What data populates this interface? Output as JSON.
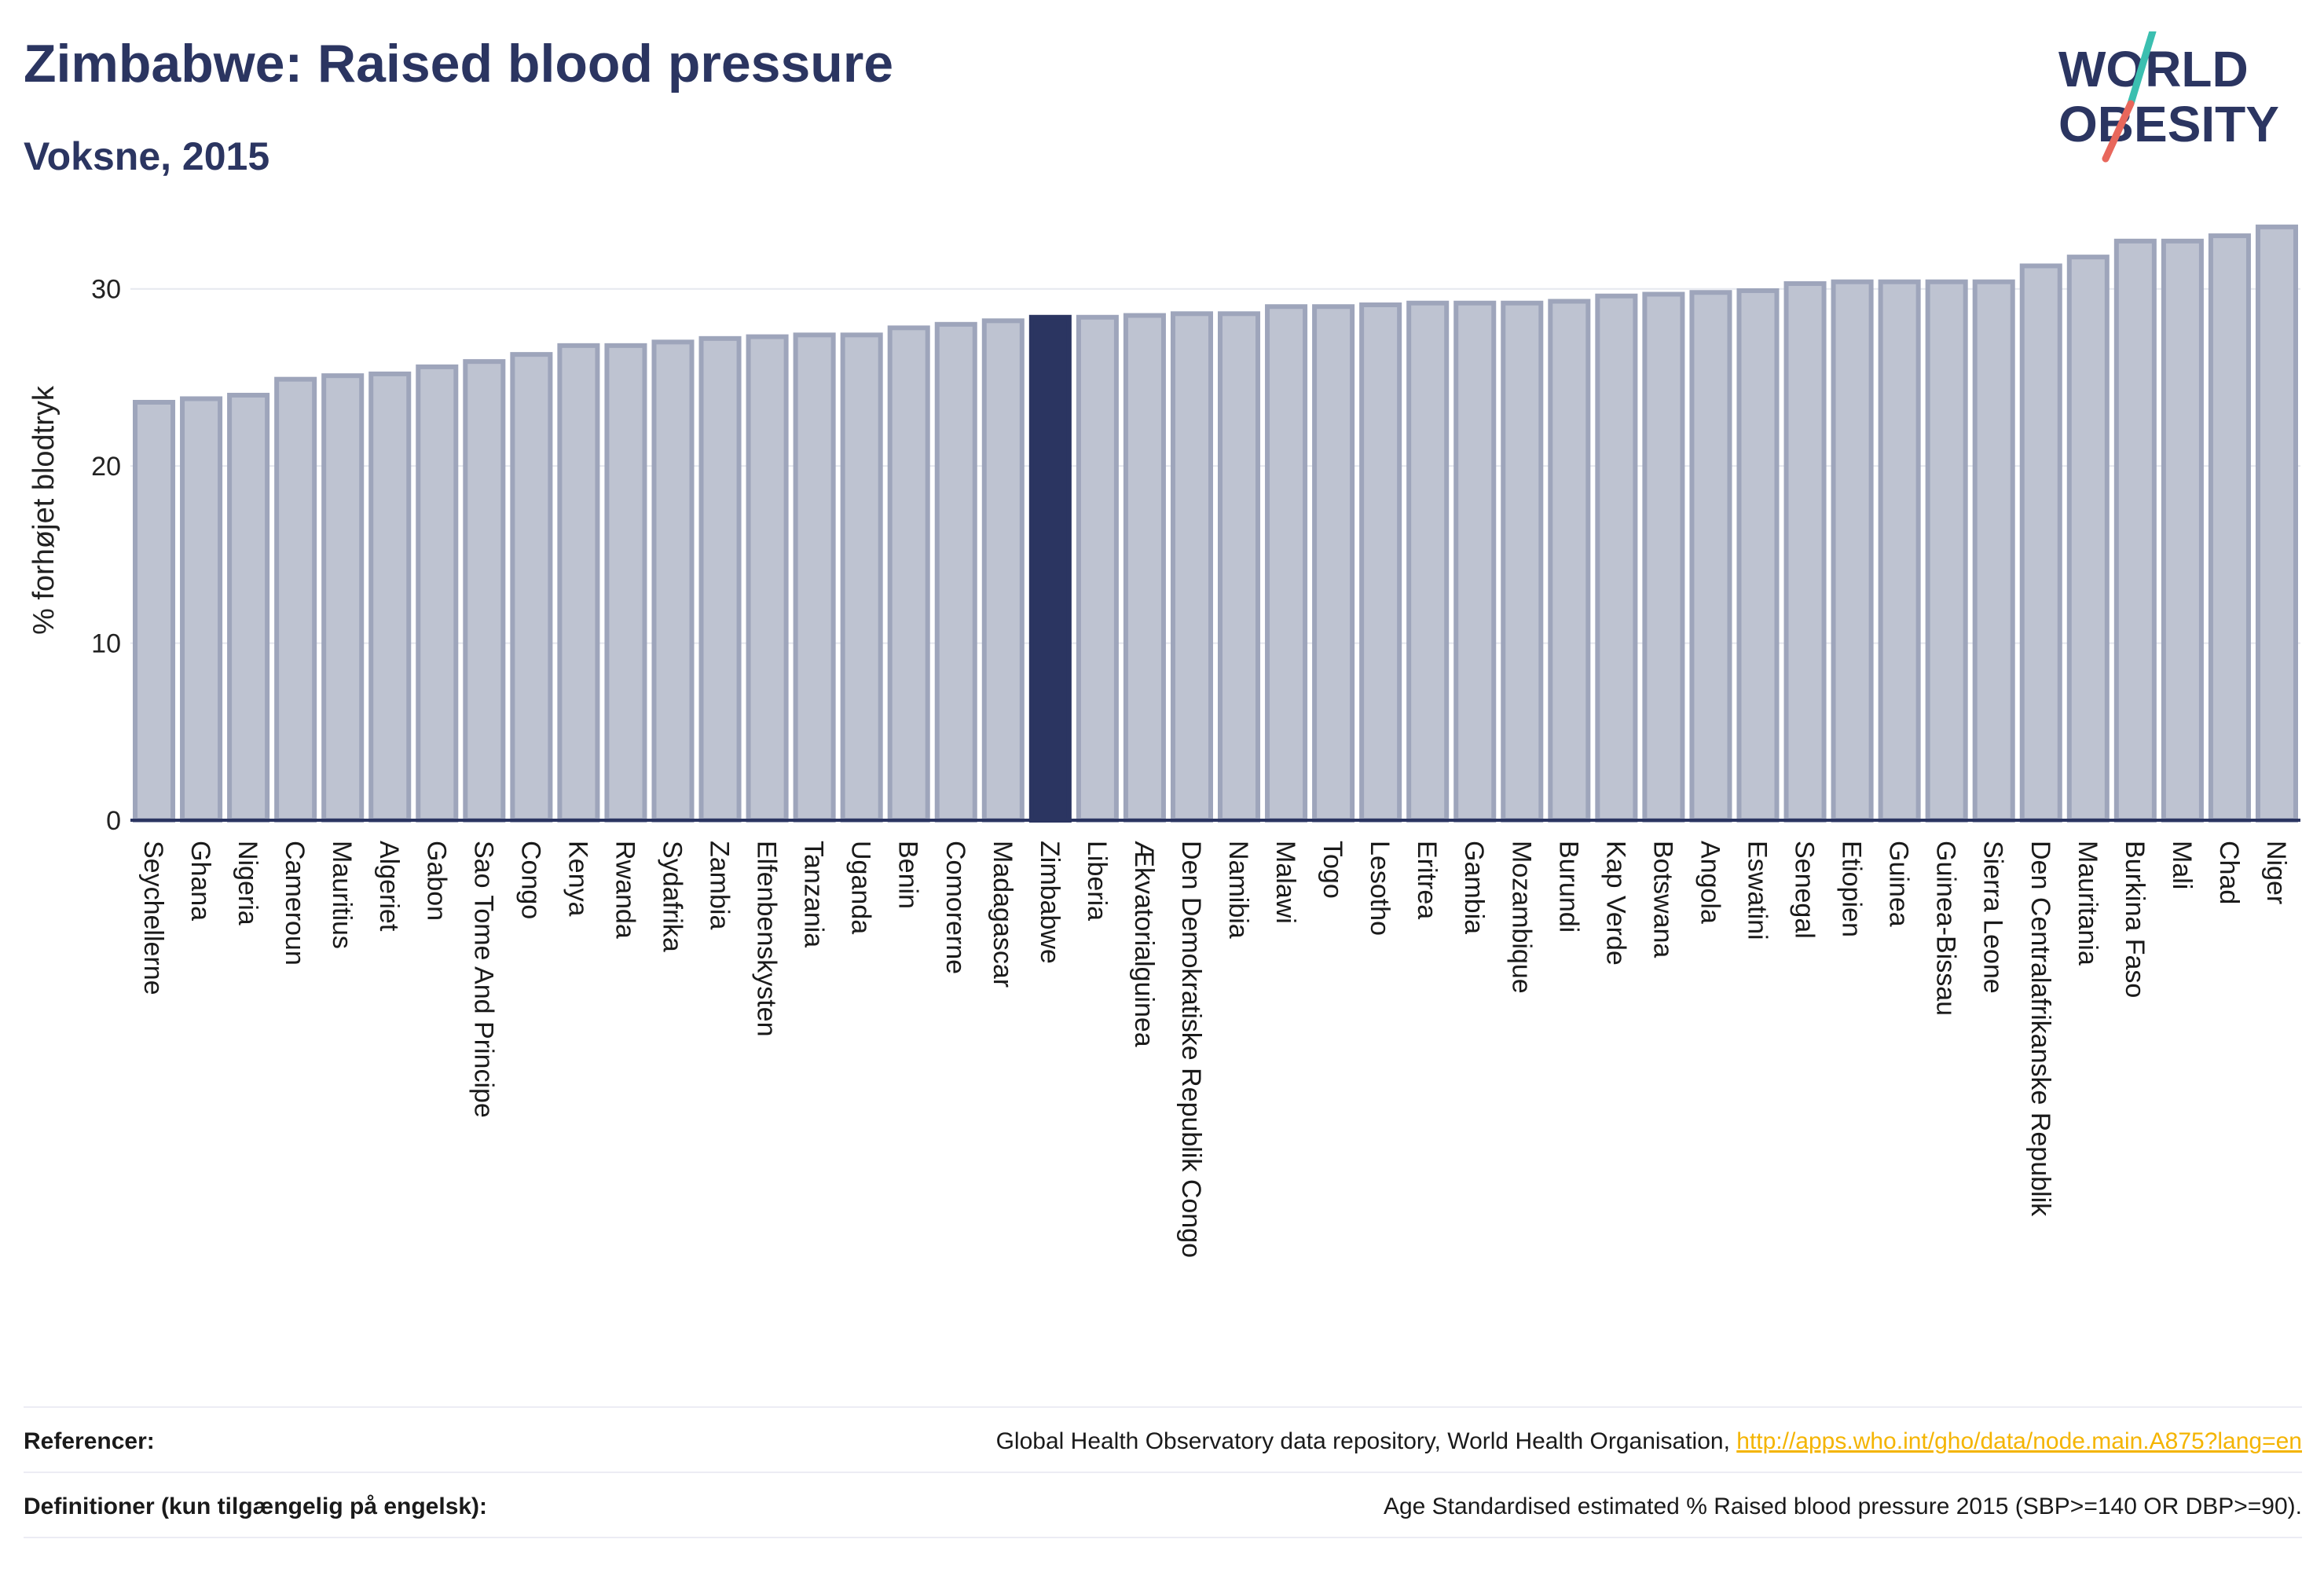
{
  "header": {
    "title": "Zimbabwe: Raised blood pressure",
    "subtitle": "Voksne, 2015"
  },
  "logo": {
    "line1": "WORLD",
    "line2": "OBESITY"
  },
  "colors": {
    "highlight": "#2b3561",
    "bar_fill": "#bec3d1",
    "bar_stroke": "#9ea5bb",
    "text": "#2b3561",
    "grid": "#e6e8ef",
    "link": "#f4b400",
    "logo_teal": "#3bbfb0",
    "logo_coral": "#e8675c"
  },
  "chart_data": {
    "type": "bar",
    "ylabel": "% forhøjet blodtryk",
    "xlabel": "",
    "ylim": [
      0,
      35
    ],
    "yticks": [
      0,
      10,
      20,
      30
    ],
    "grid": true,
    "highlight_category": "Zimbabwe",
    "categories": [
      "Seychellerne",
      "Ghana",
      "Nigeria",
      "Cameroun",
      "Mauritius",
      "Algeriet",
      "Gabon",
      "Sao Tome And Principe",
      "Congo",
      "Kenya",
      "Rwanda",
      "Sydafrika",
      "Zambia",
      "Elfenbenskysten",
      "Tanzania",
      "Uganda",
      "Benin",
      "Comorerne",
      "Madagascar",
      "Zimbabwe",
      "Liberia",
      "Ækvatorialguinea",
      "Den Demokratiske Republik Congo",
      "Namibia",
      "Malawi",
      "Togo",
      "Lesotho",
      "Eritrea",
      "Gambia",
      "Mozambique",
      "Burundi",
      "Kap Verde",
      "Botswana",
      "Angola",
      "Eswatini",
      "Senegal",
      "Etiopien",
      "Guinea",
      "Guinea-Bissau",
      "Sierra Leone",
      "Den Centralafrikanske Republik",
      "Mauritania",
      "Burkina Faso",
      "Mali",
      "Chad",
      "Niger"
    ],
    "values": [
      23.6,
      23.8,
      24.0,
      24.9,
      25.1,
      25.2,
      25.6,
      25.9,
      26.3,
      26.8,
      26.8,
      27.0,
      27.2,
      27.3,
      27.4,
      27.4,
      27.8,
      28.0,
      28.2,
      28.4,
      28.4,
      28.5,
      28.6,
      28.6,
      29.0,
      29.0,
      29.1,
      29.2,
      29.2,
      29.2,
      29.3,
      29.6,
      29.7,
      29.8,
      29.9,
      30.3,
      30.4,
      30.4,
      30.4,
      30.4,
      31.3,
      31.8,
      32.7,
      32.7,
      33.0,
      33.5
    ]
  },
  "footer": {
    "references_label": "Referencer:",
    "references_text": "Global Health Observatory data repository, World Health Organisation, ",
    "references_link": "http://apps.who.int/gho/data/node.main.A875?lang=en",
    "definitions_label": "Definitioner (kun tilgængelig på engelsk):",
    "definitions_text": "Age Standardised estimated % Raised blood pressure 2015 (SBP>=140 OR DBP>=90)."
  }
}
